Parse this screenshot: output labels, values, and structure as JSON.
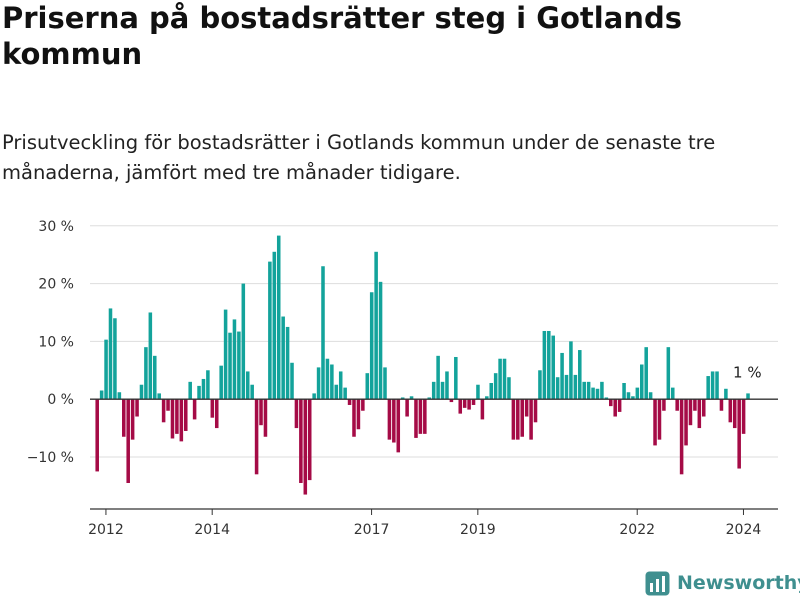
{
  "header": {
    "title": "Priserna på bostadsrätter steg i Gotlands kommun",
    "subtitle": "Prisutveckling för bostadsrätter i Gotlands kommun under de senaste tre månaderna, jämfört med tre månader tidigare."
  },
  "brand": {
    "name": "Newsworthy"
  },
  "colors": {
    "positive": "#13a39b",
    "negative": "#a50b46",
    "grid": "#dddddd",
    "baseline": "#333333"
  },
  "chart_data": {
    "type": "bar",
    "title": "Priserna på bostadsrätter steg i Gotlands kommun",
    "subtitle": "Prisutveckling för bostadsrätter i Gotlands kommun under de senaste tre månaderna, jämfört med tre månader tidigare.",
    "xlabel": "",
    "ylabel": "",
    "unit": "%",
    "ylim": [
      -19,
      31
    ],
    "y_ticks": [
      -10,
      0,
      10,
      20,
      30
    ],
    "y_tick_labels": [
      "−10 %",
      "0 %",
      "10 %",
      "20 %",
      "30 %"
    ],
    "x_ticks": [
      2012,
      2014,
      2017,
      2019,
      2022,
      2024
    ],
    "x_tick_labels": [
      "2012",
      "2014",
      "2017",
      "2019",
      "2022",
      "2024"
    ],
    "x_start": 2011.7,
    "x_end": 2024.65,
    "grid": true,
    "annotation": {
      "label": "1 %",
      "x": 2024.25,
      "y": 1
    },
    "values": [
      -12.5,
      1.5,
      10.3,
      15.7,
      14.0,
      1.2,
      -6.5,
      -14.5,
      -7.0,
      -3.0,
      2.5,
      9.0,
      15.0,
      7.5,
      1.0,
      -4.0,
      -2.0,
      -6.8,
      -6.0,
      -7.3,
      -5.5,
      3.0,
      -3.5,
      2.3,
      3.5,
      5.0,
      -3.2,
      -5.0,
      5.8,
      15.5,
      11.5,
      13.8,
      11.7,
      20.0,
      4.8,
      2.5,
      -13.0,
      -4.5,
      -6.5,
      23.8,
      25.5,
      28.3,
      14.3,
      12.5,
      6.3,
      -5.0,
      -14.5,
      -16.5,
      -14.0,
      1.0,
      5.5,
      23.0,
      7.0,
      6.0,
      2.5,
      4.8,
      2.0,
      -1.0,
      -6.5,
      -5.2,
      -2.0,
      4.5,
      18.5,
      25.5,
      20.3,
      5.5,
      -7.0,
      -7.5,
      -9.2,
      0.3,
      -3.0,
      0.5,
      -6.7,
      -6.0,
      -6.0,
      0.3,
      3.0,
      7.5,
      3.0,
      4.8,
      -0.5,
      7.3,
      -2.5,
      -1.5,
      -1.8,
      -1.0,
      2.5,
      -3.5,
      0.5,
      2.8,
      4.5,
      7.0,
      7.0,
      3.8,
      -7.0,
      -7.0,
      -6.5,
      -3.0,
      -7.0,
      -4.0,
      5.0,
      11.8,
      11.8,
      11.0,
      3.8,
      8.0,
      4.2,
      10.0,
      4.2,
      8.5,
      3.0,
      3.0,
      2.0,
      1.8,
      3.0,
      0.3,
      -1.2,
      -3.0,
      -2.2,
      2.8,
      1.2,
      0.5,
      2.0,
      6.0,
      9.0,
      1.2,
      -8.0,
      -7.0,
      -2.0,
      9.0,
      2.0,
      -2.0,
      -13.0,
      -8.0,
      -4.5,
      -2.0,
      -5.0,
      -3.0,
      4.0,
      4.8,
      4.8,
      -2.0,
      1.8,
      -4.0,
      -5.0,
      -12.0,
      -6.0,
      1.0
    ]
  }
}
